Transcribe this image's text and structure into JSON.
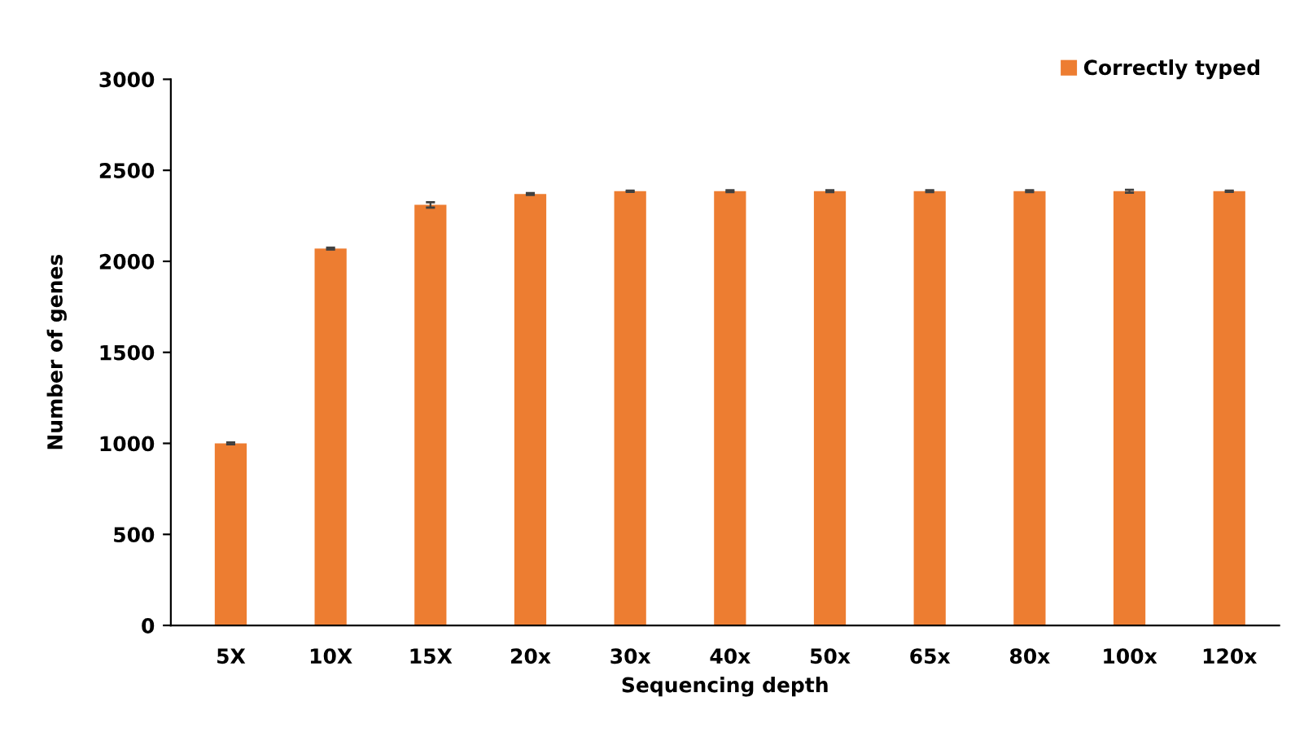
{
  "chart_data": {
    "type": "bar",
    "xlabel": "Sequencing depth",
    "ylabel": "Number of genes",
    "categories": [
      "5X",
      "10X",
      "15X",
      "20x",
      "30x",
      "40x",
      "50x",
      "65x",
      "80x",
      "100x",
      "120x"
    ],
    "series": [
      {
        "name": "Correctly typed",
        "color": "#ed7d31",
        "values": [
          1000,
          2070,
          2310,
          2370,
          2385,
          2385,
          2385,
          2385,
          2385,
          2385,
          2385
        ],
        "errors": [
          5,
          5,
          15,
          5,
          3,
          5,
          5,
          5,
          5,
          8,
          3
        ]
      }
    ],
    "ylim": [
      0,
      3000
    ],
    "yticks": [
      0,
      500,
      1000,
      1500,
      2000,
      2500,
      3000
    ],
    "legend": "top right"
  }
}
